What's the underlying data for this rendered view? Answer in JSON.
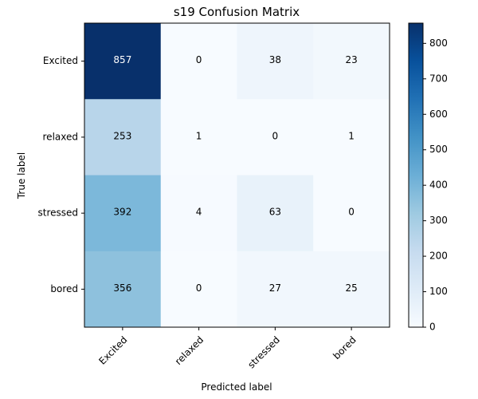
{
  "chart_data": {
    "type": "heatmap",
    "title": "s19 Confusion Matrix",
    "xlabel": "Predicted label",
    "ylabel": "True label",
    "x_categories": [
      "Excited",
      "relaxed",
      "stressed",
      "bored"
    ],
    "y_categories": [
      "Excited",
      "relaxed",
      "stressed",
      "bored"
    ],
    "values": [
      [
        857,
        0,
        38,
        23
      ],
      [
        253,
        1,
        0,
        1
      ],
      [
        392,
        4,
        63,
        0
      ],
      [
        356,
        0,
        27,
        25
      ]
    ],
    "colormap": "Blues",
    "colorbar": {
      "range": [
        0,
        857
      ],
      "ticks": [
        0,
        100,
        200,
        300,
        400,
        500,
        600,
        700,
        800
      ]
    },
    "label_colors": {
      "light": "#ffffff",
      "dark": "#000000"
    }
  }
}
